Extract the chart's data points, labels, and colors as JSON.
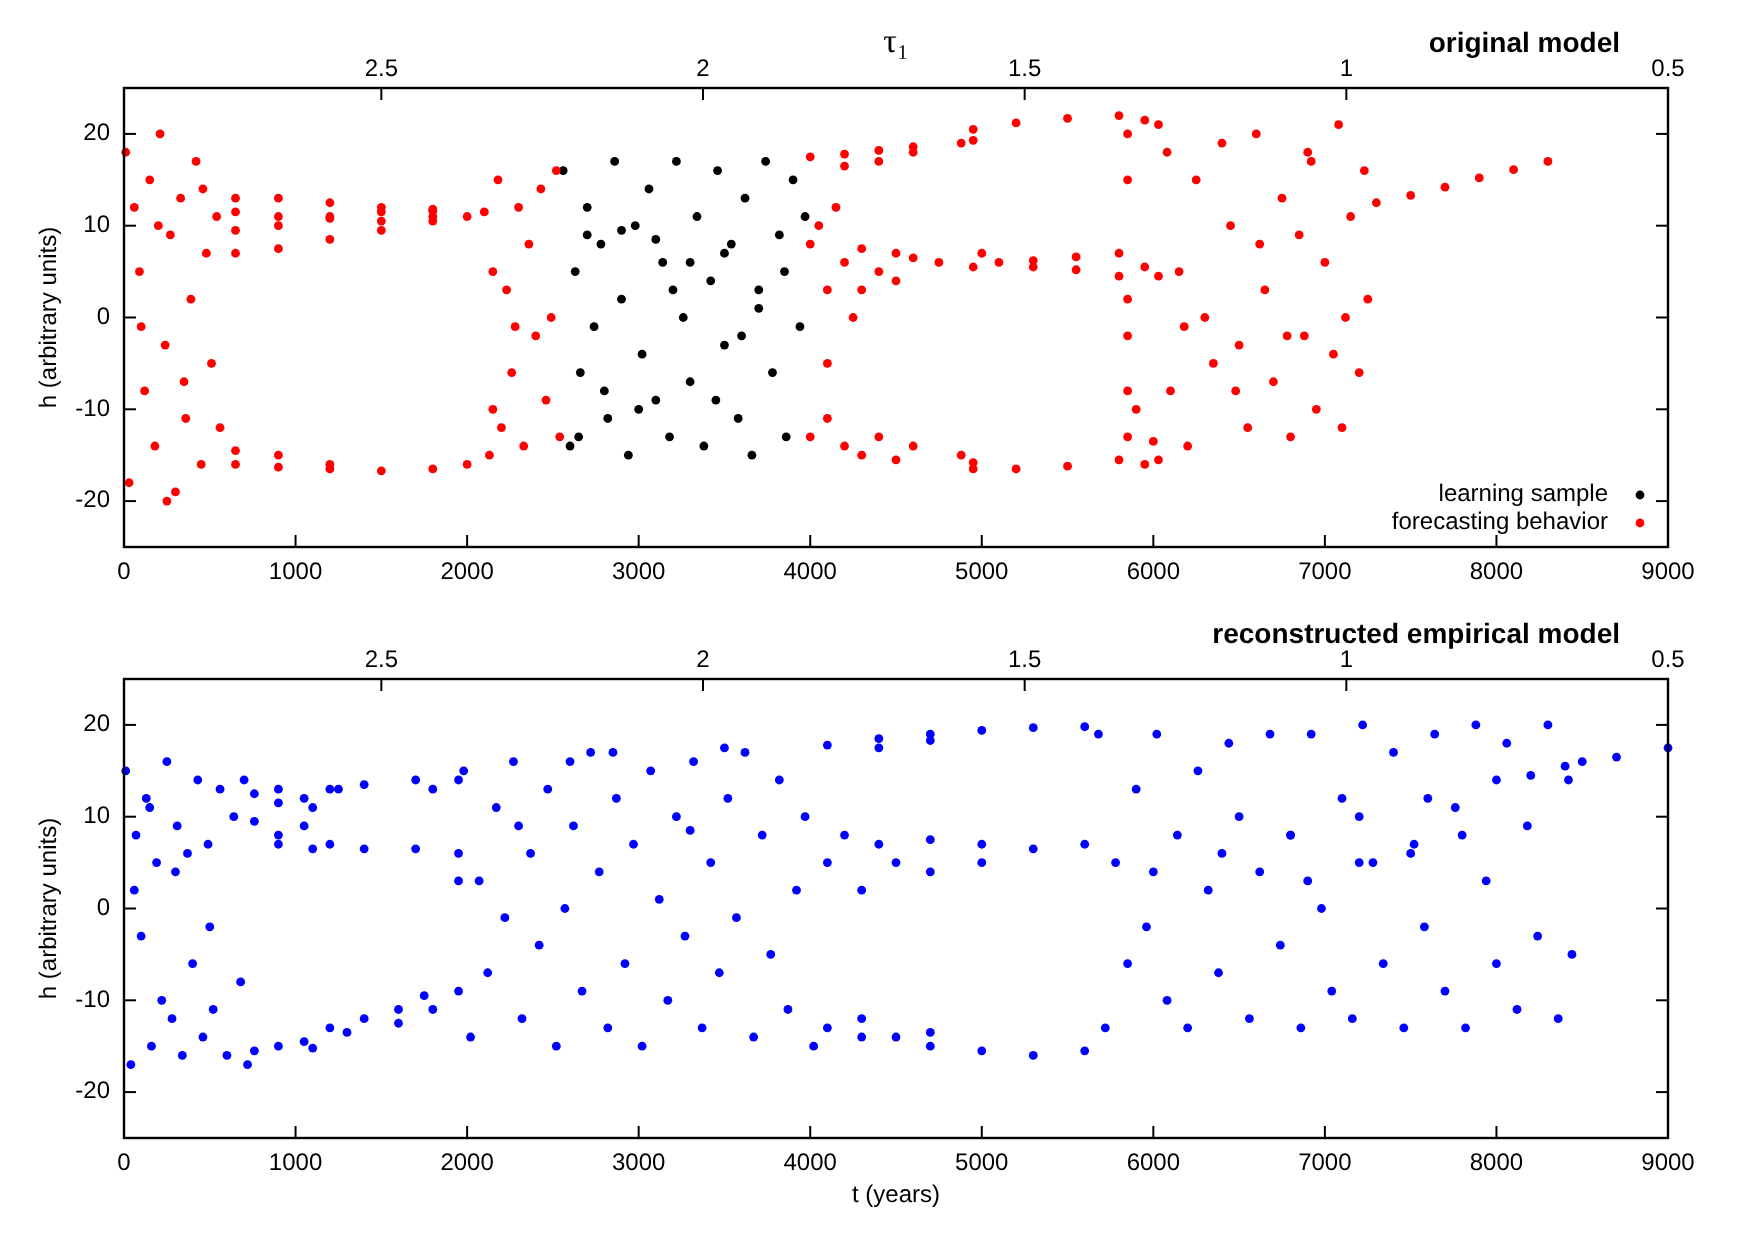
{
  "chart_data": [
    {
      "type": "scatter",
      "title": "original model",
      "x2label": "τ₁",
      "ylabel": "h (arbitrary units)",
      "xlim": [
        0,
        9000
      ],
      "xticks": [
        0,
        1000,
        2000,
        3000,
        4000,
        5000,
        6000,
        7000,
        8000,
        9000
      ],
      "x2lim": [
        2.9,
        0.5
      ],
      "x2ticks": [
        2.5,
        2,
        1.5,
        1,
        0.5
      ],
      "ylim": [
        -25,
        25
      ],
      "yticks": [
        -20,
        -10,
        0,
        10,
        20
      ],
      "marker": "circle",
      "legend": "bottom right",
      "series": [
        {
          "name": "learning sample",
          "color": "#000000",
          "x": [
            2560,
            2600,
            2630,
            2660,
            2700,
            2740,
            2780,
            2820,
            2860,
            2900,
            2940,
            2980,
            3020,
            3060,
            3100,
            3140,
            3180,
            3220,
            3260,
            3300,
            3340,
            3380,
            3420,
            3460,
            3500,
            3540,
            3580,
            3620,
            3660,
            3700,
            3740,
            3780,
            3820,
            3860,
            3900,
            3940,
            3970,
            2700,
            2900,
            3100,
            3300,
            3500,
            3700,
            2800,
            3000,
            3600,
            3200,
            2650,
            3850,
            3450
          ],
          "values": [
            16,
            -14,
            5,
            -6,
            12,
            -1,
            8,
            -11,
            17,
            2,
            -15,
            10,
            -4,
            14,
            -9,
            6,
            -13,
            17,
            0,
            -7,
            11,
            -14,
            4,
            16,
            -3,
            8,
            -11,
            13,
            -15,
            1,
            17,
            -6,
            9,
            -13,
            15,
            -1,
            11,
            9,
            9.5,
            8.5,
            6,
            7,
            3,
            -8,
            -10,
            -2,
            3,
            -13,
            5,
            -9
          ]
        },
        {
          "name": "forecasting behavior",
          "color": "#ff0000",
          "x": [
            10,
            30,
            60,
            90,
            120,
            150,
            180,
            210,
            240,
            270,
            300,
            330,
            360,
            390,
            420,
            450,
            480,
            510,
            540,
            560,
            100,
            200,
            350,
            460,
            250,
            650,
            900,
            1200,
            1500,
            1800,
            2100,
            650,
            900,
            1200,
            1500,
            1800,
            650,
            900,
            1200,
            1500,
            1800,
            650,
            900,
            1200,
            1500,
            1800,
            2000,
            650,
            900,
            1200,
            1500,
            1800,
            2000,
            2130,
            650,
            900,
            1200,
            2150,
            2150,
            2180,
            2200,
            2230,
            2260,
            2300,
            2330,
            2360,
            2400,
            2430,
            2460,
            2490,
            2520,
            2540,
            2280,
            4000,
            4200,
            4400,
            4600,
            4880,
            4200,
            4400,
            4600,
            4000,
            4100,
            4200,
            4300,
            4400,
            4500,
            4600,
            4750,
            4300,
            4500,
            4100,
            4050,
            4150,
            4250,
            4000,
            4200,
            4400,
            4600,
            4880,
            4300,
            4500,
            4100,
            4950,
            5200,
            5500,
            5800,
            4950,
            4950,
            5000,
            5100,
            5300,
            5550,
            5800,
            5300,
            5550,
            5800,
            4950,
            5200,
            5500,
            5800,
            4950,
            5850,
            5850,
            5850,
            5850,
            5850,
            5850,
            5950,
            6030,
            5950,
            6030,
            5950,
            6030,
            6000,
            5900,
            6080,
            6100,
            6150,
            6200,
            6250,
            6300,
            6350,
            6400,
            6450,
            6500,
            6550,
            6600,
            6650,
            6700,
            6750,
            6800,
            6850,
            6880,
            6920,
            6950,
            7000,
            7050,
            7080,
            7100,
            7150,
            7200,
            7230,
            7250,
            6180,
            6480,
            6620,
            6780,
            7120,
            6900,
            7300,
            7500,
            7700,
            7900,
            8100,
            8300
          ],
          "values": [
            18,
            -18,
            12,
            5,
            -8,
            15,
            -14,
            20,
            -3,
            9,
            -19,
            13,
            -11,
            2,
            17,
            -16,
            7,
            -5,
            11,
            -12,
            -1,
            10,
            -7,
            14,
            -20,
            13,
            13,
            12.5,
            12,
            11.8,
            11.5,
            11.5,
            11,
            10.8,
            11.5,
            11.6,
            9.5,
            10,
            11,
            10.5,
            11,
            7,
            7.5,
            8.5,
            9.5,
            10.5,
            11,
            -14.5,
            -15,
            -16,
            -16.7,
            -16.5,
            -16,
            -15,
            -16,
            -16.3,
            -16.5,
            -10,
            5,
            15,
            -12,
            3,
            -6,
            12,
            -14,
            8,
            -2,
            14,
            -9,
            0,
            16,
            -13,
            -1,
            17.5,
            17.8,
            18.2,
            18.6,
            19,
            16.5,
            17,
            18,
            8,
            3,
            6,
            7.5,
            5,
            7,
            6.5,
            6,
            3,
            4,
            -5,
            10,
            12,
            0,
            -13,
            -14,
            -13,
            -14,
            -15,
            -15,
            -15.5,
            -11,
            20.5,
            21.2,
            21.7,
            22,
            19.3,
            5.5,
            7,
            6,
            6.2,
            6.6,
            7,
            5.5,
            5.2,
            4.5,
            -16.5,
            -16.5,
            -16.2,
            -15.5,
            -15.8,
            -13,
            -8,
            -2,
            2,
            15,
            20,
            21.5,
            21,
            5.5,
            4.5,
            -16,
            -15.5,
            -13.5,
            -10,
            18,
            -8,
            5,
            -14,
            15,
            0,
            -5,
            19,
            10,
            -3,
            -12,
            20,
            3,
            -7,
            13,
            -13,
            9,
            -2,
            17,
            -10,
            6,
            -4,
            21,
            -12,
            11,
            -6,
            16,
            2,
            -1,
            -8,
            8,
            -2,
            0,
            18,
            12.5,
            13.3,
            14.2,
            15.2,
            16.1,
            17
          ]
        }
      ]
    },
    {
      "type": "scatter",
      "title": "reconstructed empirical model",
      "xlabel": "t (years)",
      "ylabel": "h (arbitrary units)",
      "xlim": [
        0,
        9000
      ],
      "xticks": [
        0,
        1000,
        2000,
        3000,
        4000,
        5000,
        6000,
        7000,
        8000,
        9000
      ],
      "x2lim": [
        2.9,
        0.5
      ],
      "x2ticks": [
        2.5,
        2,
        1.5,
        1,
        0.5
      ],
      "ylim": [
        -25,
        25
      ],
      "yticks": [
        -20,
        -10,
        0,
        10,
        20
      ],
      "marker": "circle",
      "series": [
        {
          "color": "#0000ff",
          "x": [
            10,
            40,
            70,
            100,
            130,
            160,
            190,
            220,
            250,
            280,
            310,
            340,
            370,
            400,
            430,
            460,
            490,
            520,
            560,
            600,
            640,
            680,
            700,
            720,
            60,
            300,
            500,
            150,
            760,
            900,
            1050,
            1200,
            1400,
            1700,
            1800,
            1950,
            900,
            1100,
            1250,
            760,
            900,
            1050,
            1200,
            1400,
            1700,
            1950,
            900,
            1100,
            1950,
            760,
            900,
            1050,
            1200,
            1400,
            1600,
            1750,
            1950,
            1100,
            1300,
            1600,
            1800,
            1980,
            2020,
            2070,
            2120,
            2170,
            2220,
            2270,
            2320,
            2370,
            2420,
            2470,
            2520,
            2570,
            2620,
            2670,
            2720,
            2770,
            2820,
            2870,
            2920,
            2970,
            3020,
            3070,
            3120,
            3170,
            3220,
            3270,
            3320,
            3370,
            3420,
            3470,
            3520,
            3570,
            3620,
            3670,
            3720,
            3770,
            3820,
            3870,
            3920,
            3970,
            4020,
            2300,
            2600,
            2850,
            3500,
            3300,
            4100,
            4400,
            4700,
            5000,
            5300,
            5600,
            4400,
            4700,
            4100,
            4200,
            4300,
            4400,
            4500,
            4700,
            4700,
            5000,
            5000,
            5300,
            5600,
            4100,
            4300,
            4500,
            4700,
            4700,
            5000,
            5300,
            5600,
            4300,
            5680,
            5720,
            5780,
            5850,
            5900,
            5960,
            6020,
            6080,
            6140,
            6200,
            6260,
            6320,
            6380,
            6440,
            6500,
            6560,
            6620,
            6680,
            6740,
            6800,
            6860,
            6920,
            6980,
            7040,
            7100,
            7160,
            7220,
            7280,
            7340,
            7400,
            7460,
            7520,
            7580,
            7640,
            7700,
            7760,
            7820,
            7880,
            7940,
            8000,
            8060,
            8120,
            8180,
            8240,
            8300,
            8360,
            8420,
            8440,
            6000,
            6400,
            6800,
            7200,
            7600,
            8000,
            8200,
            8400,
            6900,
            7200,
            7500,
            7800,
            8500,
            8700,
            9000
          ],
          "values": [
            15,
            -17,
            8,
            -3,
            12,
            -15,
            5,
            -10,
            16,
            -12,
            9,
            -16,
            6,
            -6,
            14,
            -14,
            7,
            -11,
            13,
            -16,
            10,
            -8,
            14,
            -17,
            2,
            4,
            -2,
            11,
            12.5,
            13,
            12,
            13,
            13.5,
            14,
            13,
            14,
            11.5,
            11,
            13,
            9.5,
            8,
            9,
            7,
            6.5,
            6.5,
            6,
            7,
            6.5,
            3,
            -15.5,
            -15,
            -14.5,
            -13,
            -12,
            -11,
            -9.5,
            -9,
            -15.2,
            -13.5,
            -12.5,
            -11,
            15,
            -14,
            3,
            -7,
            11,
            -1,
            16,
            -12,
            6,
            -4,
            13,
            -15,
            0,
            9,
            -9,
            17,
            4,
            -13,
            12,
            -6,
            7,
            -15,
            15,
            1,
            -10,
            10,
            -3,
            16,
            -13,
            5,
            -7,
            12,
            -1,
            17,
            -14,
            8,
            -5,
            14,
            -11,
            2,
            10,
            -15,
            9,
            16,
            17,
            17.5,
            8.5,
            17.8,
            18.5,
            19,
            19.4,
            19.7,
            19.8,
            17.5,
            18.3,
            5,
            8,
            2,
            7,
            5,
            7.5,
            4,
            7,
            5,
            6.5,
            7,
            -13,
            -14,
            -14,
            -13.5,
            -15,
            -15.5,
            -16,
            -15.5,
            -12,
            19,
            -13,
            5,
            -6,
            13,
            -2,
            19,
            -10,
            8,
            -13,
            15,
            2,
            -7,
            18,
            10,
            -12,
            4,
            19,
            -4,
            8,
            -13,
            19,
            0,
            -9,
            12,
            -12,
            20,
            5,
            -6,
            17,
            -13,
            7,
            -2,
            19,
            -9,
            11,
            -13,
            20,
            3,
            -6,
            18,
            -11,
            9,
            -3,
            20,
            -12,
            14,
            -5,
            4,
            6,
            8,
            10,
            12,
            14,
            14.5,
            15.5,
            3,
            5,
            6,
            8,
            16,
            16.5,
            17.5
          ]
        }
      ]
    }
  ]
}
